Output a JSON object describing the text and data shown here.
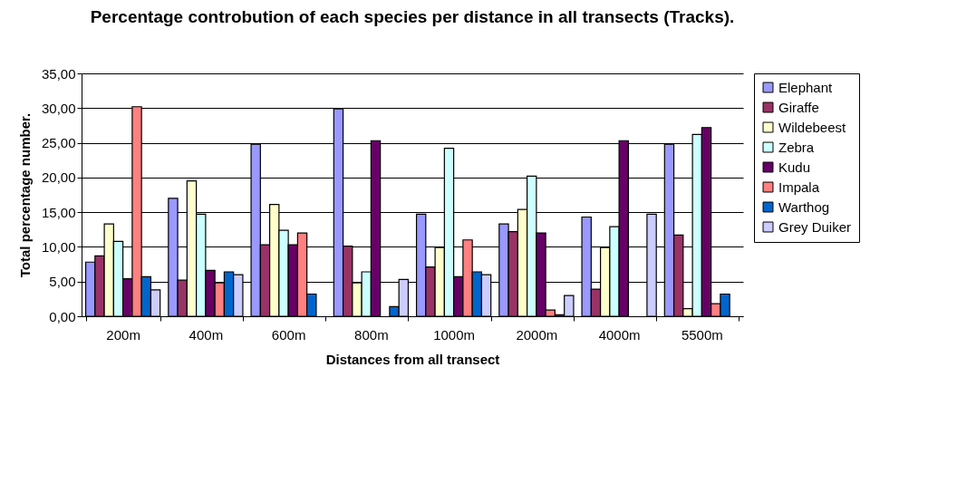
{
  "chart_data": {
    "type": "bar",
    "title": "Percentage controbution of each species per distance in all transects (Tracks).",
    "xlabel": "Distances from all transect",
    "ylabel": "Total percentage number.",
    "categories": [
      "200m",
      "400m",
      "600m",
      "800m",
      "1000m",
      "2000m",
      "4000m",
      "5500m"
    ],
    "series": [
      {
        "name": "Elephant",
        "color": "#9999ff",
        "values": [
          7.8,
          17.0,
          24.8,
          29.9,
          14.7,
          13.3,
          14.3,
          24.8
        ]
      },
      {
        "name": "Giraffe",
        "color": "#993366",
        "values": [
          8.7,
          5.2,
          10.3,
          10.1,
          7.1,
          12.2,
          3.9,
          11.7
        ]
      },
      {
        "name": "Wildebeest",
        "color": "#ffffcc",
        "values": [
          13.3,
          19.5,
          16.1,
          4.8,
          9.9,
          15.4,
          9.9,
          1.1
        ]
      },
      {
        "name": "Zebra",
        "color": "#ccffff",
        "values": [
          10.8,
          14.7,
          12.4,
          6.4,
          24.2,
          20.2,
          12.9,
          26.2
        ]
      },
      {
        "name": "Kudu",
        "color": "#660066",
        "values": [
          5.4,
          6.6,
          10.3,
          25.3,
          5.7,
          12.0,
          25.3,
          27.2
        ]
      },
      {
        "name": "Impala",
        "color": "#ff8080",
        "values": [
          30.2,
          4.8,
          12.0,
          null,
          11.0,
          0.9,
          null,
          1.8
        ]
      },
      {
        "name": "Warthog",
        "color": "#0066cc",
        "values": [
          5.7,
          6.4,
          3.2,
          1.4,
          6.4,
          0.2,
          null,
          3.2
        ]
      },
      {
        "name": "Grey Duiker",
        "color": "#ccccff",
        "values": [
          3.8,
          6.0,
          null,
          5.3,
          6.0,
          3.0,
          14.7,
          null
        ]
      }
    ],
    "ylim": [
      0,
      35
    ],
    "yticks": [
      {
        "value": 0,
        "label": "0,00"
      },
      {
        "value": 5,
        "label": "5,00"
      },
      {
        "value": 10,
        "label": "10,00"
      },
      {
        "value": 15,
        "label": "15,00"
      },
      {
        "value": 20,
        "label": "20,00"
      },
      {
        "value": 25,
        "label": "25,00"
      },
      {
        "value": 30,
        "label": "30,00"
      },
      {
        "value": 35,
        "label": "35,00"
      }
    ],
    "grid": "y",
    "legend": "right"
  }
}
